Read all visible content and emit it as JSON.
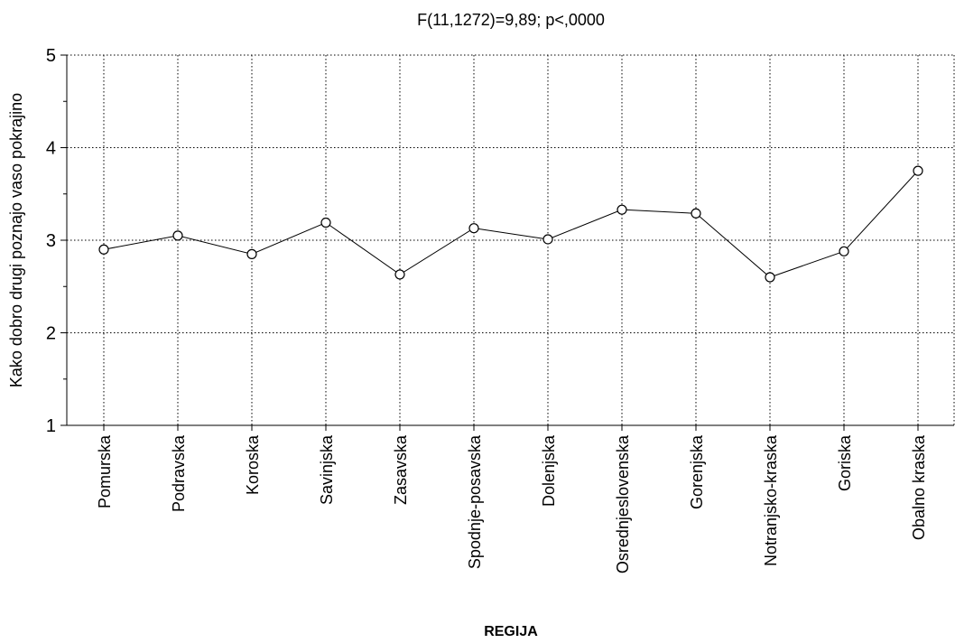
{
  "chart_data": {
    "type": "line",
    "title": "F(11,1272)=9,89; p<,0000",
    "xlabel": "REGIJA",
    "ylabel": "Kako dobro drugi poznajo vaso pokrajino",
    "ylim": [
      1,
      5
    ],
    "yticks": [
      1,
      2,
      3,
      4,
      5
    ],
    "grid": true,
    "categories": [
      "Pomurska",
      "Podravska",
      "Koroska",
      "Savinjska",
      "Zasavska",
      "Spodnje-posavska",
      "Dolenjska",
      "Osrednjeslovenska",
      "Gorenjska",
      "Notranjsko-kraska",
      "Goriska",
      "Obalno kraska"
    ],
    "values": [
      2.9,
      3.05,
      2.85,
      3.19,
      2.63,
      3.13,
      3.01,
      3.33,
      3.29,
      2.6,
      2.88,
      3.75
    ],
    "line_color": "#000000",
    "marker": "open-circle"
  }
}
